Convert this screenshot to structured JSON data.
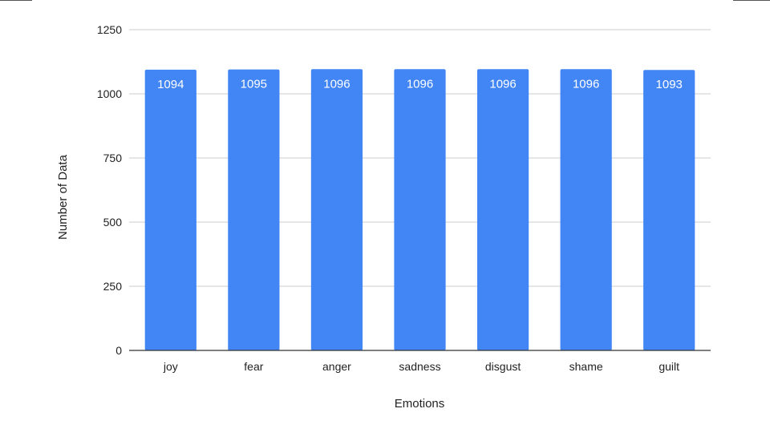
{
  "chart_data": {
    "type": "bar",
    "title": "",
    "xlabel": "Emotions",
    "ylabel": "Number of Data",
    "categories": [
      "joy",
      "fear",
      "anger",
      "sadness",
      "disgust",
      "shame",
      "guilt"
    ],
    "values": [
      1094,
      1095,
      1096,
      1096,
      1096,
      1096,
      1093
    ],
    "data_labels": [
      "1094",
      "1095",
      "1096",
      "1096",
      "1096",
      "1096",
      "1093"
    ],
    "ylim": [
      0,
      1250
    ],
    "yticks": [
      0,
      250,
      500,
      750,
      1000,
      1250
    ],
    "ytick_labels": [
      "0",
      "250",
      "500",
      "750",
      "1000",
      "1250"
    ],
    "grid": true,
    "legend": "none",
    "bar_color": "#4285F4",
    "gridline_color": "#CCCCCC",
    "axis_color": "#333333"
  }
}
